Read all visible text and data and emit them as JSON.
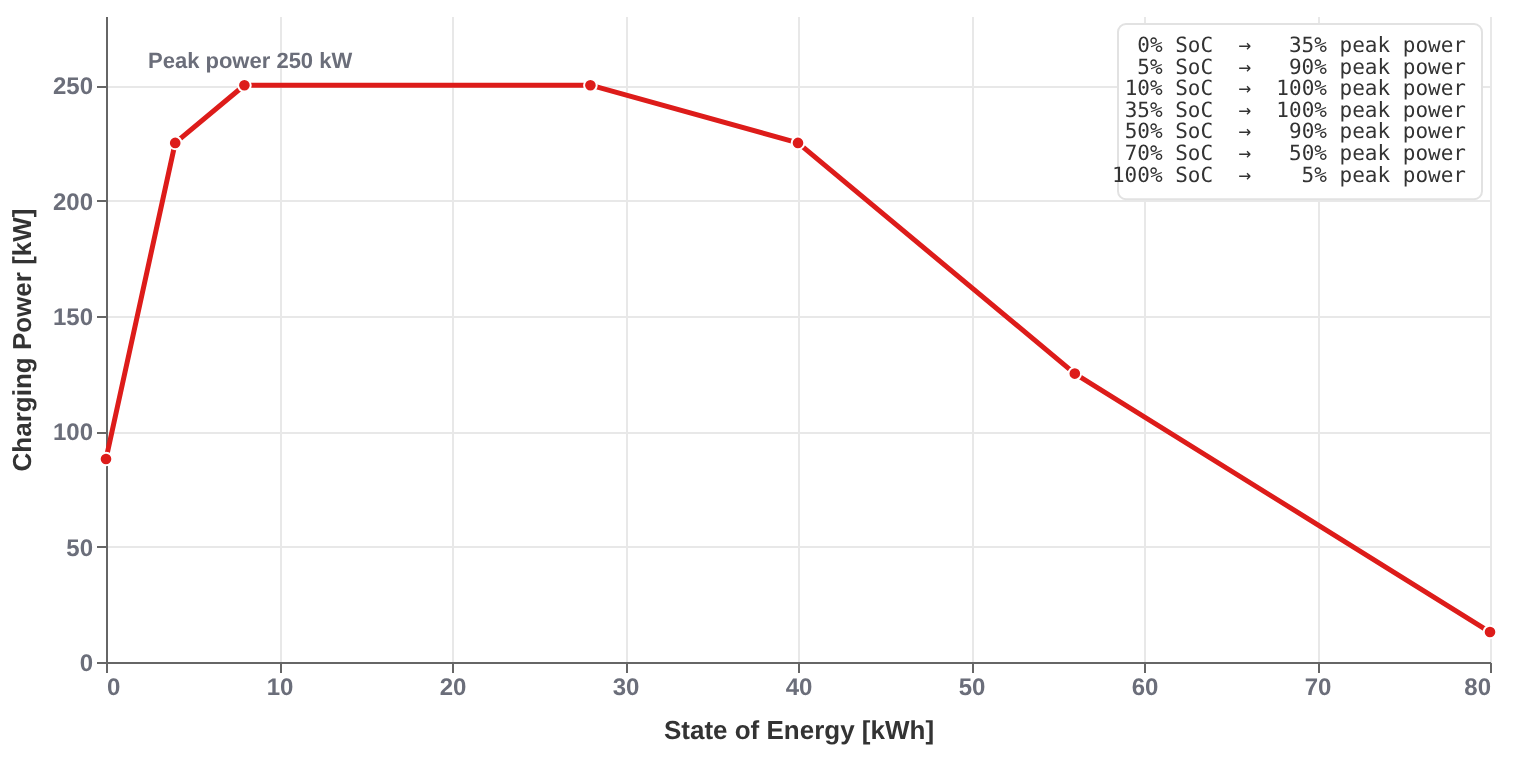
{
  "chart_data": {
    "type": "line",
    "xlabel": "State of Energy [kWh]",
    "ylabel": "Charging Power [kW]",
    "x": [
      0,
      4,
      8,
      28,
      40,
      56,
      80
    ],
    "series": [
      {
        "color": "#dd1c1a",
        "values": [
          88,
          225,
          250,
          250,
          225,
          125,
          13
        ]
      }
    ],
    "xlim": [
      0,
      80
    ],
    "xticks": [
      0,
      10,
      20,
      30,
      40,
      50,
      60,
      70,
      80
    ],
    "ylim": [
      0,
      280
    ],
    "yticks": [
      0,
      50,
      100,
      150,
      200,
      250
    ],
    "grid": true,
    "marker": "circle",
    "line_style": "solid",
    "annotations": [
      "Peak power 250 kW",
      "  0% SoC  →   35% peak power",
      "  5% SoC  →   90% peak power",
      " 10% SoC  →  100% peak power",
      " 35% SoC  →  100% peak power",
      " 50% SoC  →   90% peak power",
      " 70% SoC  →   50% peak power",
      "100% SoC  →    5% peak power"
    ]
  }
}
